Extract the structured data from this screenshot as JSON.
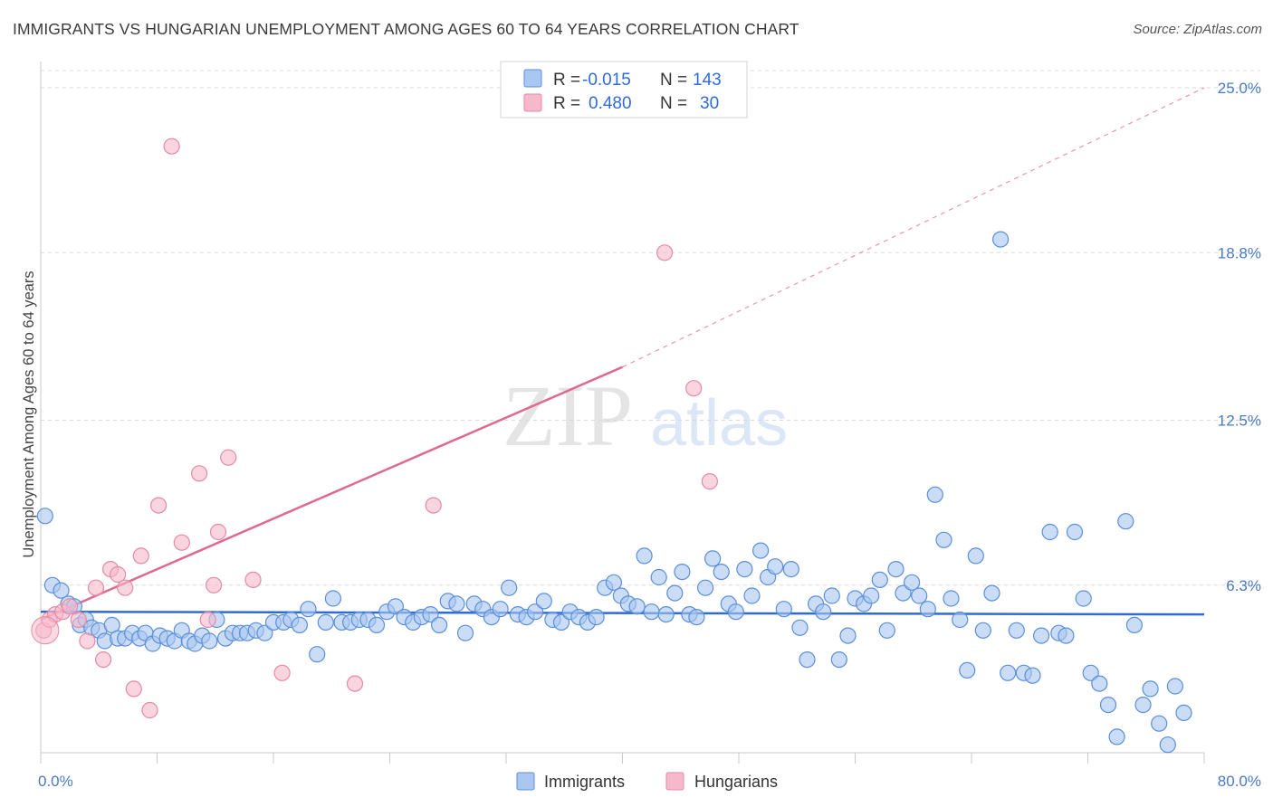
{
  "title": "IMMIGRANTS VS HUNGARIAN UNEMPLOYMENT AMONG AGES 60 TO 64 YEARS CORRELATION CHART",
  "source": "Source: ZipAtlas.com",
  "watermark": {
    "zip": "ZIP",
    "atlas": "atlas"
  },
  "colors": {
    "blue_fill": "#a9c7f0",
    "blue_stroke": "#5b8fd9",
    "blue_line": "#2f6bd6",
    "pink_fill": "#f6b9cb",
    "pink_stroke": "#e48aa7",
    "pink_line": "#e0698f",
    "grid": "#d9d9d9",
    "axis_text": "#4a79c8"
  },
  "legend": {
    "rows": [
      {
        "r_label": "R =",
        "r_value": "-0.015",
        "n_label": "N =",
        "n_value": "143",
        "series": "Immigrants"
      },
      {
        "r_label": "R =",
        "r_value": "0.480",
        "n_label": "N =",
        "n_value": "30",
        "series": "Hungarians"
      }
    ]
  },
  "bottom_legend": [
    "Immigrants",
    "Hungarians"
  ],
  "chart_data": {
    "type": "scatter",
    "title": "IMMIGRANTS VS HUNGARIAN UNEMPLOYMENT AMONG AGES 60 TO 64 YEARS CORRELATION CHART",
    "xlabel": "",
    "ylabel": "Unemployment Among Ages 60 to 64 years",
    "xlim": [
      0,
      80
    ],
    "ylim": [
      0,
      25
    ],
    "x_tick_labels": [
      "0.0%",
      "80.0%"
    ],
    "y_ticks": [
      6.3,
      12.5,
      18.8,
      25.0
    ],
    "y_tick_labels": [
      "6.3%",
      "12.5%",
      "18.8%",
      "25.0%"
    ],
    "grid": true,
    "series": [
      {
        "name": "Immigrants",
        "r": -0.015,
        "n": 143,
        "trend": {
          "x0": 0,
          "y0": 5.3,
          "x1": 80,
          "y1": 5.2,
          "dashed_extension": false
        },
        "points": [
          [
            0.3,
            8.9
          ],
          [
            0.8,
            6.3
          ],
          [
            1.4,
            6.1
          ],
          [
            1.9,
            5.6
          ],
          [
            2.3,
            5.5
          ],
          [
            2.7,
            4.8
          ],
          [
            3.1,
            5.0
          ],
          [
            3.5,
            4.7
          ],
          [
            4.0,
            4.6
          ],
          [
            4.4,
            4.2
          ],
          [
            4.9,
            4.8
          ],
          [
            5.3,
            4.3
          ],
          [
            5.8,
            4.3
          ],
          [
            6.3,
            4.5
          ],
          [
            6.8,
            4.3
          ],
          [
            7.2,
            4.5
          ],
          [
            7.7,
            4.1
          ],
          [
            8.2,
            4.4
          ],
          [
            8.7,
            4.3
          ],
          [
            9.2,
            4.2
          ],
          [
            9.7,
            4.6
          ],
          [
            10.2,
            4.2
          ],
          [
            10.6,
            4.1
          ],
          [
            11.1,
            4.4
          ],
          [
            11.6,
            4.2
          ],
          [
            12.1,
            5.0
          ],
          [
            12.7,
            4.3
          ],
          [
            13.2,
            4.5
          ],
          [
            13.7,
            4.5
          ],
          [
            14.2,
            4.5
          ],
          [
            14.8,
            4.6
          ],
          [
            15.4,
            4.5
          ],
          [
            16.0,
            4.9
          ],
          [
            16.7,
            4.9
          ],
          [
            17.2,
            5.0
          ],
          [
            17.8,
            4.8
          ],
          [
            18.4,
            5.4
          ],
          [
            19.0,
            3.7
          ],
          [
            19.6,
            4.9
          ],
          [
            20.1,
            5.8
          ],
          [
            20.7,
            4.9
          ],
          [
            21.3,
            4.9
          ],
          [
            21.9,
            5.0
          ],
          [
            22.5,
            5.0
          ],
          [
            23.1,
            4.8
          ],
          [
            23.8,
            5.3
          ],
          [
            24.4,
            5.5
          ],
          [
            25.0,
            5.1
          ],
          [
            25.6,
            4.9
          ],
          [
            26.2,
            5.1
          ],
          [
            26.8,
            5.2
          ],
          [
            27.4,
            4.8
          ],
          [
            28.0,
            5.7
          ],
          [
            28.6,
            5.6
          ],
          [
            29.2,
            4.5
          ],
          [
            29.8,
            5.6
          ],
          [
            30.4,
            5.4
          ],
          [
            31.0,
            5.1
          ],
          [
            31.6,
            5.4
          ],
          [
            32.2,
            6.2
          ],
          [
            32.8,
            5.2
          ],
          [
            33.4,
            5.1
          ],
          [
            34.0,
            5.3
          ],
          [
            34.6,
            5.7
          ],
          [
            35.2,
            5.0
          ],
          [
            35.8,
            4.9
          ],
          [
            36.4,
            5.3
          ],
          [
            37.0,
            5.1
          ],
          [
            37.6,
            4.9
          ],
          [
            38.2,
            5.1
          ],
          [
            38.8,
            6.2
          ],
          [
            39.4,
            6.4
          ],
          [
            39.9,
            5.9
          ],
          [
            40.4,
            5.6
          ],
          [
            41.0,
            5.5
          ],
          [
            41.5,
            7.4
          ],
          [
            42.0,
            5.3
          ],
          [
            42.5,
            6.6
          ],
          [
            43.0,
            5.2
          ],
          [
            43.6,
            6.0
          ],
          [
            44.1,
            6.8
          ],
          [
            44.6,
            5.2
          ],
          [
            45.1,
            5.1
          ],
          [
            45.7,
            6.2
          ],
          [
            46.2,
            7.3
          ],
          [
            46.8,
            6.8
          ],
          [
            47.3,
            5.6
          ],
          [
            47.8,
            5.3
          ],
          [
            48.4,
            6.9
          ],
          [
            48.9,
            5.9
          ],
          [
            49.5,
            7.6
          ],
          [
            50.0,
            6.6
          ],
          [
            50.5,
            7.0
          ],
          [
            51.1,
            5.4
          ],
          [
            51.6,
            6.9
          ],
          [
            52.2,
            4.7
          ],
          [
            52.7,
            3.5
          ],
          [
            53.3,
            5.6
          ],
          [
            53.8,
            5.3
          ],
          [
            54.4,
            5.9
          ],
          [
            54.9,
            3.5
          ],
          [
            55.5,
            4.4
          ],
          [
            56.0,
            5.8
          ],
          [
            56.6,
            5.6
          ],
          [
            57.1,
            5.9
          ],
          [
            57.7,
            6.5
          ],
          [
            58.2,
            4.6
          ],
          [
            58.8,
            6.9
          ],
          [
            59.3,
            6.0
          ],
          [
            59.9,
            6.4
          ],
          [
            60.4,
            5.9
          ],
          [
            61.0,
            5.4
          ],
          [
            61.5,
            9.7
          ],
          [
            62.1,
            8.0
          ],
          [
            62.6,
            5.8
          ],
          [
            63.2,
            5.0
          ],
          [
            63.7,
            3.1
          ],
          [
            64.3,
            7.4
          ],
          [
            64.8,
            4.6
          ],
          [
            65.4,
            6.0
          ],
          [
            66.0,
            19.3
          ],
          [
            66.5,
            3.0
          ],
          [
            67.1,
            4.6
          ],
          [
            67.6,
            3.0
          ],
          [
            68.2,
            2.9
          ],
          [
            68.8,
            4.4
          ],
          [
            69.4,
            8.3
          ],
          [
            70.0,
            4.5
          ],
          [
            70.5,
            4.4
          ],
          [
            71.1,
            8.3
          ],
          [
            71.7,
            5.8
          ],
          [
            72.2,
            3.0
          ],
          [
            72.8,
            2.6
          ],
          [
            73.4,
            1.8
          ],
          [
            74.0,
            0.6
          ],
          [
            74.6,
            8.7
          ],
          [
            75.2,
            4.8
          ],
          [
            75.8,
            1.8
          ],
          [
            76.3,
            2.4
          ],
          [
            76.9,
            1.1
          ],
          [
            77.5,
            0.3
          ],
          [
            78.0,
            2.5
          ],
          [
            78.6,
            1.5
          ]
        ]
      },
      {
        "name": "Hungarians",
        "r": 0.48,
        "n": 30,
        "trend": {
          "x0": 0,
          "y0": 5.0,
          "x1": 40,
          "y1": 14.5,
          "ext_x1": 80,
          "ext_y1": 25.0,
          "dashed_extension": true
        },
        "points": [
          [
            0.2,
            4.6
          ],
          [
            0.6,
            5.0
          ],
          [
            1.0,
            5.2
          ],
          [
            1.5,
            5.3
          ],
          [
            2.0,
            5.5
          ],
          [
            2.6,
            5.0
          ],
          [
            3.2,
            4.2
          ],
          [
            3.8,
            6.2
          ],
          [
            4.3,
            3.5
          ],
          [
            4.8,
            6.9
          ],
          [
            5.3,
            6.7
          ],
          [
            5.8,
            6.2
          ],
          [
            6.4,
            2.4
          ],
          [
            6.9,
            7.4
          ],
          [
            7.5,
            1.6
          ],
          [
            8.1,
            9.3
          ],
          [
            9.0,
            22.8
          ],
          [
            9.7,
            7.9
          ],
          [
            10.9,
            10.5
          ],
          [
            11.5,
            5.0
          ],
          [
            11.9,
            6.3
          ],
          [
            12.2,
            8.3
          ],
          [
            12.9,
            11.1
          ],
          [
            14.6,
            6.5
          ],
          [
            16.6,
            3.0
          ],
          [
            21.6,
            2.6
          ],
          [
            27.0,
            9.3
          ],
          [
            42.9,
            18.8
          ],
          [
            44.9,
            13.7
          ],
          [
            46.0,
            10.2
          ]
        ]
      }
    ]
  }
}
